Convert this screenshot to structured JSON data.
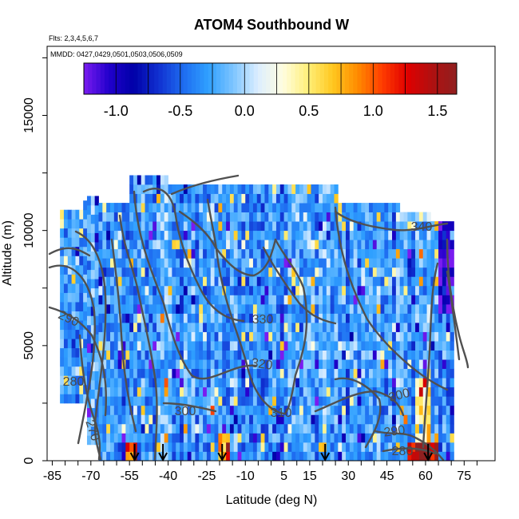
{
  "chart_data": {
    "type": "heatmap",
    "title": "ATOM4 Southbound W",
    "subtitle_flights": "Flts: 2,3,4,5,6,7",
    "subtitle_dates": "MMDD: 0427,0429,0501,0503,0506,0509",
    "xlabel": "Latitude (deg N)",
    "ylabel": "Altitude (m)",
    "xlim": [
      -87,
      87
    ],
    "ylim": [
      0,
      18000
    ],
    "x_tick_labels": [
      "-85",
      "-70",
      "-55",
      "-40",
      "-25",
      "-10",
      "5",
      "15",
      "30",
      "45",
      "60",
      "75"
    ],
    "x_tick_values": [
      -85,
      -70,
      -55,
      -40,
      -25,
      -10,
      5,
      15,
      30,
      45,
      60,
      75
    ],
    "x_minor_step": 5,
    "y_tick_labels": [
      "0",
      "5000",
      "10000",
      "15000"
    ],
    "y_tick_values": [
      0,
      5000,
      10000,
      15000
    ],
    "colorbar": {
      "range": [
        -1.25,
        1.65
      ],
      "tick_labels": [
        "-1.0",
        "-0.5",
        "0.0",
        "0.5",
        "1.0",
        "1.5"
      ],
      "tick_values": [
        -1.0,
        -0.5,
        0.0,
        0.5,
        1.0,
        1.5
      ],
      "colors": [
        "#7a1cf0",
        "#2200cc",
        "#0000a8",
        "#1030d0",
        "#1e6cf0",
        "#2fa0ff",
        "#7cc4ff",
        "#dceeff",
        "#fffde0",
        "#fff07a",
        "#ffc820",
        "#ff8c00",
        "#ff3c00",
        "#e00000",
        "#b01010",
        "#902020"
      ]
    },
    "contour_label_values": [
      "340",
      "330",
      "320",
      "310",
      "300",
      "300",
      "290",
      "290",
      "280",
      "280",
      "270"
    ],
    "surface_marker_latitudes": [
      -53,
      -42,
      -19,
      21,
      61
    ]
  }
}
